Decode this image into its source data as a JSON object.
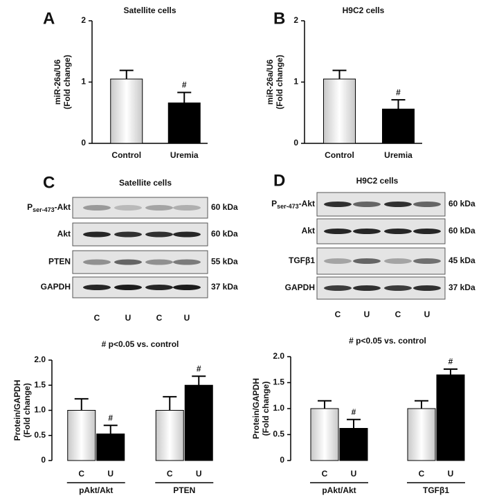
{
  "chart_data": [
    {
      "type": "bar",
      "panel": "A",
      "title": "Satellite cells",
      "ylabel": [
        "miR-26a/U6",
        "(Fold change)"
      ],
      "categories": [
        "Control",
        "Uremia"
      ],
      "values": [
        1.05,
        0.66
      ],
      "errors": [
        0.14,
        0.17
      ],
      "colors": [
        "#c8c8c8",
        "#000000"
      ],
      "annotations": [
        null,
        "#"
      ],
      "ylim": [
        0,
        2
      ],
      "yticks": [
        0,
        1,
        2
      ]
    },
    {
      "type": "bar",
      "panel": "B",
      "title": "H9C2 cells",
      "ylabel": [
        "miR-26a/U6",
        "(Fold change)"
      ],
      "categories": [
        "Control",
        "Uremia"
      ],
      "values": [
        1.05,
        0.56
      ],
      "errors": [
        0.14,
        0.15
      ],
      "colors": [
        "#c8c8c8",
        "#000000"
      ],
      "annotations": [
        null,
        "#"
      ],
      "ylim": [
        0,
        2
      ],
      "yticks": [
        0,
        1,
        2
      ]
    },
    {
      "type": "grouped_bar",
      "title": "# p<0.05 vs. control",
      "ylabel": [
        "Protein/GAPDH",
        "(Fold change)"
      ],
      "categories": [
        "pAkt/Akt",
        "PTEN"
      ],
      "series": [
        {
          "name": "C",
          "color": "#c8c8c8",
          "values": [
            1.0,
            1.0
          ],
          "errors": [
            0.23,
            0.27
          ],
          "annotations": [
            null,
            null
          ]
        },
        {
          "name": "U",
          "color": "#000000",
          "values": [
            0.53,
            1.5
          ],
          "errors": [
            0.17,
            0.18
          ],
          "annotations": [
            "#",
            "#"
          ]
        }
      ],
      "ylim": [
        0,
        2
      ],
      "yticks": [
        0,
        0.5,
        {
          "value": 1,
          "label": "1.0"
        },
        1.5,
        {
          "value": 2,
          "label": "2.0"
        }
      ]
    },
    {
      "type": "grouped_bar",
      "title": "# p<0.05 vs. control",
      "ylabel": [
        "Protein/GAPDH",
        "(Fold change)"
      ],
      "categories": [
        "pAkt/Akt",
        "TGFβ1"
      ],
      "series": [
        {
          "name": "C",
          "color": "#c8c8c8",
          "values": [
            1.0,
            1.0
          ],
          "errors": [
            0.15,
            0.15
          ],
          "annotations": [
            null,
            null
          ]
        },
        {
          "name": "U",
          "color": "#000000",
          "values": [
            0.62,
            1.65
          ],
          "errors": [
            0.17,
            0.11
          ],
          "annotations": [
            "#",
            "#"
          ]
        }
      ],
      "ylim": [
        0,
        2
      ],
      "yticks": [
        0,
        0.5,
        {
          "value": 1,
          "label": "1.0"
        },
        1.5,
        {
          "value": 2,
          "label": "2.0"
        }
      ]
    }
  ],
  "blots": [
    {
      "panel": "C",
      "title": "Satellite cells",
      "lanes": [
        "C",
        "U",
        "C",
        "U"
      ],
      "rows": [
        {
          "label": [
            "P",
            "ser-473",
            "-Akt"
          ],
          "size": "60 kDa"
        },
        {
          "label": [
            "Akt"
          ],
          "size": "60 kDa"
        },
        {
          "label": [
            "PTEN"
          ],
          "size": "55 kDa"
        },
        {
          "label": [
            "GAPDH"
          ],
          "size": "37 kDa"
        }
      ]
    },
    {
      "panel": "D",
      "title": "H9C2 cells",
      "lanes": [
        "C",
        "U",
        "C",
        "U"
      ],
      "rows": [
        {
          "label": [
            "P",
            "ser-473",
            "-Akt"
          ],
          "size": "60 kDa"
        },
        {
          "label": [
            "Akt"
          ],
          "size": "60 kDa"
        },
        {
          "label": [
            "TGFβ1"
          ],
          "size": "45 kDa"
        },
        {
          "label": [
            "GAPDH"
          ],
          "size": "37 kDa"
        }
      ]
    }
  ]
}
